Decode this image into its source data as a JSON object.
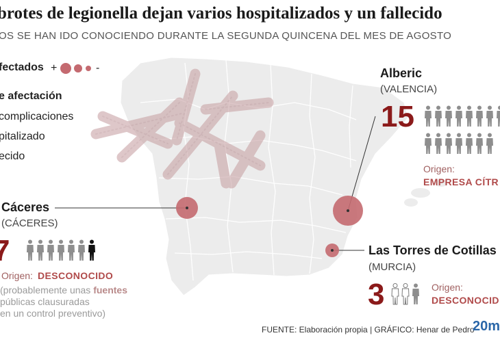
{
  "header": {
    "title": "brotes de legionella dejan varios hospitalizados y un fallecido",
    "subtitle": "OS SE HAN IDO CONOCIENDO DURANTE LA SEGUNDA QUINCENA DEL MES DE AGOSTO"
  },
  "legend": {
    "affected_label": "fectados",
    "plus": "+",
    "minus": "-",
    "level_title": "e afectación",
    "items": [
      "complicaciones",
      "pitalizado",
      "ecido"
    ]
  },
  "colors": {
    "accent": "#8b1a1a",
    "bubble": "#c46a70",
    "map": "#ebebeb",
    "origin": "#b04a4a",
    "brand": "#2a66a8"
  },
  "outbreaks": {
    "alberic": {
      "city": "Alberic",
      "province": "(VALENCIA)",
      "count": "15",
      "origin_label": "Origen:",
      "origin_value": "EMPRESA CÍTR"
    },
    "caceres": {
      "city": "Cáceres",
      "province": "(CÁCERES)",
      "count": "7",
      "origin_label": "Origen:",
      "origin_value": "DESCONOCIDO",
      "note_lines": [
        "(probablemente unas ",
        "fuentes",
        "públicas clausuradas",
        "en un control preventivo)"
      ]
    },
    "torres": {
      "city": "Las Torres de Cotillas",
      "province": "(MURCIA)",
      "count": "3",
      "origin_label": "Origen:",
      "origin_value": "DESCONOCID"
    }
  },
  "footer": {
    "source": "FUENTE: Elaboración propia  |  GRÁFICO: Henar de Pedro",
    "brand": "20m"
  }
}
